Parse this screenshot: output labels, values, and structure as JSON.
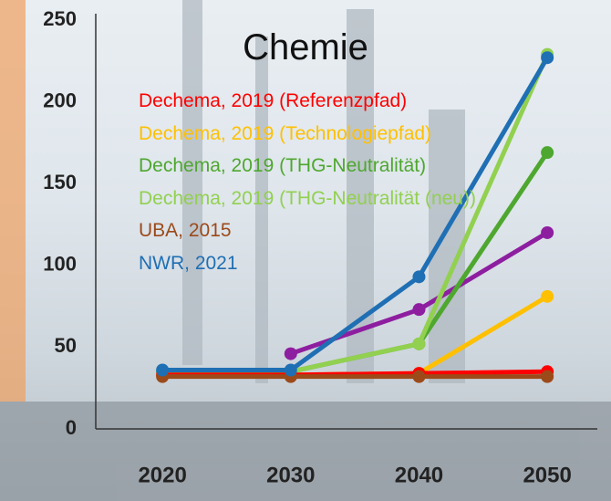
{
  "chart_data": {
    "type": "line",
    "title": "Chemie",
    "x": [
      2020,
      2030,
      2040,
      2050
    ],
    "xlim": [
      2014.8,
      2053.9
    ],
    "xticks": [
      2020,
      2030,
      2040,
      2050
    ],
    "ylim": [
      0,
      250
    ],
    "yticks": [
      0,
      50,
      100,
      150,
      200,
      250
    ],
    "series": [
      {
        "name": "Dechema, 2019 (Referenzpfad)",
        "color": "#ff0000",
        "values": [
          33,
          33,
          34,
          35
        ]
      },
      {
        "name": "Dechema, 2019 (Technologiepfad)",
        "color": "#ffc000",
        "values": [
          33,
          33,
          34,
          81
        ]
      },
      {
        "name": "Dechema, 2019 (THG-Neutralität)",
        "color": "#4ea72e",
        "values": [
          35,
          35,
          52,
          169
        ]
      },
      {
        "name": "Dechema, 2019 (THG-Neutralität (neu))",
        "color": "#92d050",
        "values": [
          null,
          35,
          52,
          229
        ]
      },
      {
        "name": "UBA, 2015",
        "color": "#9c4a1a",
        "values": [
          32,
          32,
          32,
          32
        ]
      },
      {
        "name": "NWR, 2021",
        "color": "#1f6fb4",
        "values": [
          36,
          36,
          93,
          227
        ]
      },
      {
        "color": "#8e1ea0",
        "values": [
          null,
          46,
          73,
          120
        ]
      }
    ]
  }
}
